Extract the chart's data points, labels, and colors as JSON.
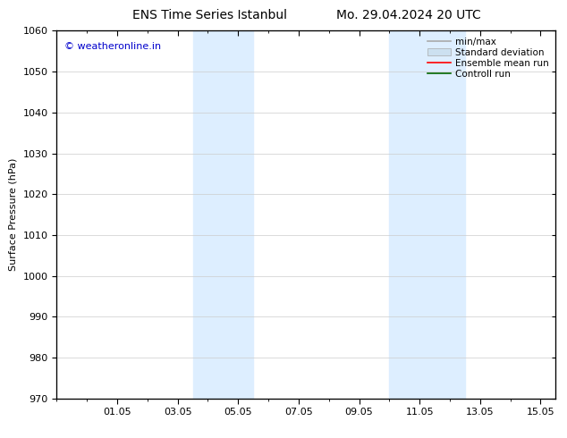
{
  "title_left": "ENS Time Series Istanbul",
  "title_right": "Mo. 29.04.2024 20 UTC",
  "ylabel": "Surface Pressure (hPa)",
  "ylim": [
    970,
    1060
  ],
  "yticks": [
    970,
    980,
    990,
    1000,
    1010,
    1020,
    1030,
    1040,
    1050,
    1060
  ],
  "xlim": [
    0.0,
    16.5
  ],
  "xtick_labels": [
    "01.05",
    "03.05",
    "05.05",
    "07.05",
    "09.05",
    "11.05",
    "13.05",
    "15.05"
  ],
  "xtick_positions": [
    2,
    4,
    6,
    8,
    10,
    12,
    14,
    16
  ],
  "shaded_bands": [
    {
      "x_start": 4.5,
      "x_end": 6.5,
      "color": "#ddeeff"
    },
    {
      "x_start": 11.0,
      "x_end": 13.5,
      "color": "#ddeeff"
    }
  ],
  "watermark_text": "© weatheronline.in",
  "watermark_color": "#0000cc",
  "background_color": "#ffffff",
  "legend_items": [
    {
      "label": "min/max",
      "color": "#aaaaaa",
      "linestyle": "-",
      "linewidth": 1.2
    },
    {
      "label": "Standard deviation",
      "color": "#cce0f0",
      "linestyle": "-",
      "linewidth": 8
    },
    {
      "label": "Ensemble mean run",
      "color": "#ff0000",
      "linestyle": "-",
      "linewidth": 1.2
    },
    {
      "label": "Controll run",
      "color": "#006600",
      "linestyle": "-",
      "linewidth": 1.2
    }
  ],
  "grid_color": "#cccccc",
  "tick_label_fontsize": 8,
  "axis_label_fontsize": 8,
  "title_fontsize": 10,
  "watermark_fontsize": 8
}
